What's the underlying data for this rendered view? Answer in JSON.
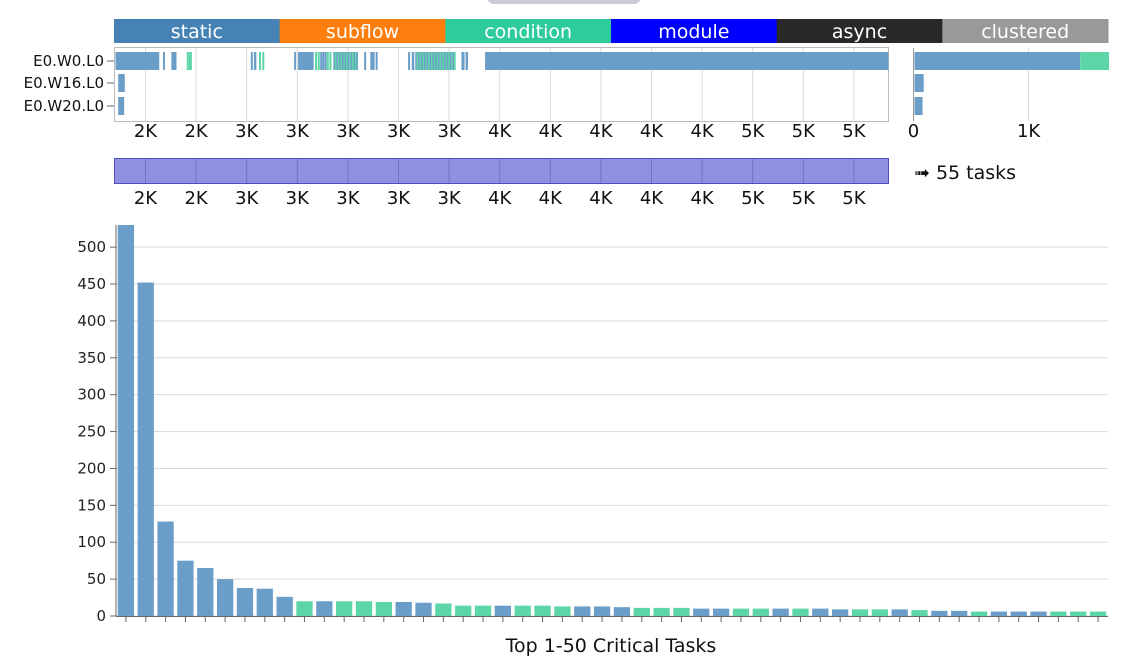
{
  "legend": [
    {
      "label": "static",
      "color": "#4682b4"
    },
    {
      "label": "subflow",
      "color": "#ff7f0e"
    },
    {
      "label": "condition",
      "color": "#2ecc9a"
    },
    {
      "label": "module",
      "color": "#0000ff"
    },
    {
      "label": "async",
      "color": "#292929"
    },
    {
      "label": "clustered",
      "color": "#999999"
    }
  ],
  "colors": {
    "static_bar": "#6a9ec8",
    "condition_bar": "#5cd6a6",
    "brush": "#9090e0",
    "brush_border": "#5050c0"
  },
  "timeline": {
    "workers": [
      "E0.W0.L0",
      "E0.W16.L0",
      "E0.W20.L0"
    ],
    "x_ticks": [
      "2K",
      "2K",
      "3K",
      "3K",
      "3K",
      "3K",
      "3K",
      "4K",
      "4K",
      "4K",
      "4K",
      "4K",
      "5K",
      "5K",
      "5K"
    ],
    "x_range": [
      1750,
      5520
    ]
  },
  "load": {
    "x_ticks": [
      "0",
      "1K"
    ],
    "x_range": [
      0,
      1690
    ],
    "rows": [
      {
        "worker": "E0.W0.L0",
        "static": 1440,
        "condition": 250
      },
      {
        "worker": "E0.W16.L0",
        "static": 80,
        "condition": 0
      },
      {
        "worker": "E0.W20.L0",
        "static": 70,
        "condition": 0
      }
    ]
  },
  "brush": {
    "x_ticks": [
      "2K",
      "2K",
      "3K",
      "3K",
      "3K",
      "3K",
      "3K",
      "4K",
      "4K",
      "4K",
      "4K",
      "4K",
      "5K",
      "5K",
      "5K"
    ],
    "label": "➟ 55 tasks"
  },
  "chart_data": {
    "type": "bar",
    "title": "",
    "xlabel": "Top 1-50 Critical Tasks",
    "ylabel": "",
    "ylim": [
      0,
      530
    ],
    "y_ticks": [
      "0",
      "50",
      "100",
      "150",
      "200",
      "250",
      "300",
      "350",
      "400",
      "450",
      "500"
    ],
    "grid": true,
    "values": [
      530,
      452,
      128,
      75,
      65,
      50,
      38,
      37,
      26,
      20,
      20,
      20,
      20,
      19,
      19,
      18,
      17,
      14,
      14,
      14,
      14,
      14,
      13,
      13,
      13,
      12,
      11,
      11,
      11,
      10,
      10,
      10,
      10,
      10,
      10,
      10,
      9,
      9,
      9,
      9,
      8,
      7,
      7,
      6,
      6,
      6,
      6,
      6,
      6,
      6
    ],
    "kinds": [
      "static",
      "static",
      "static",
      "static",
      "static",
      "static",
      "static",
      "static",
      "static",
      "condition",
      "static",
      "condition",
      "condition",
      "condition",
      "static",
      "static",
      "condition",
      "condition",
      "condition",
      "static",
      "condition",
      "condition",
      "condition",
      "static",
      "static",
      "static",
      "condition",
      "condition",
      "condition",
      "static",
      "static",
      "condition",
      "condition",
      "static",
      "condition",
      "static",
      "static",
      "condition",
      "condition",
      "static",
      "condition",
      "static",
      "static",
      "condition",
      "static",
      "static",
      "static",
      "condition",
      "condition",
      "condition"
    ]
  }
}
